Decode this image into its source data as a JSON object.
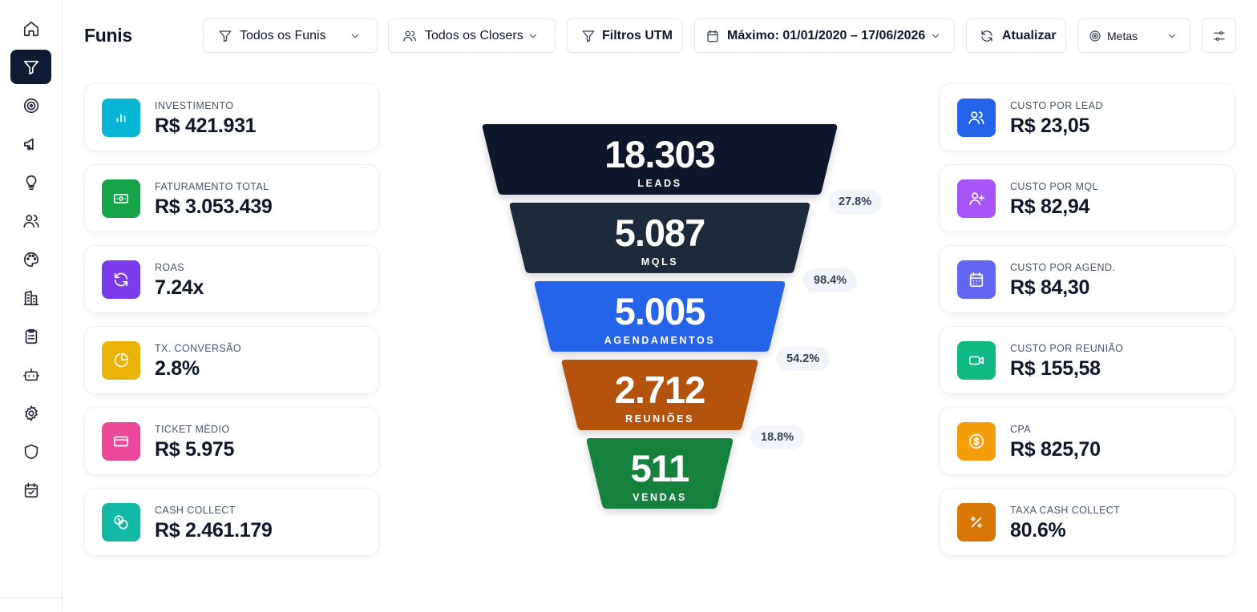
{
  "page_title": "Funis",
  "header": {
    "funnels_select": "Todos os Funis",
    "closers_select": "Todos os Closers",
    "utm_filter": "Filtros UTM",
    "date_range": "Máximo: 01/01/2020 – 17/06/2026",
    "refresh": "Atualizar",
    "goals_select": "Metas"
  },
  "left_cards": [
    {
      "label": "INVESTIMENTO",
      "value": "R$ 421.931",
      "color": "#06b6d4",
      "icon": "bar-chart-icon"
    },
    {
      "label": "FATURAMENTO TOTAL",
      "value": "R$ 3.053.439",
      "color": "#16a34a",
      "icon": "banknote-icon"
    },
    {
      "label": "ROAS",
      "value": "7.24x",
      "color": "#7c3aed",
      "icon": "refresh-icon"
    },
    {
      "label": "TX. CONVERSÃO",
      "value": "2.8%",
      "color": "#eab308",
      "icon": "pie-chart-icon"
    },
    {
      "label": "TICKET MÉDIO",
      "value": "R$ 5.975",
      "color": "#ec4899",
      "icon": "credit-card-icon"
    },
    {
      "label": "CASH COLLECT",
      "value": "R$ 2.461.179",
      "color": "#14b8a6",
      "icon": "coins-icon"
    }
  ],
  "right_cards": [
    {
      "label": "CUSTO POR LEAD",
      "value": "R$ 23,05",
      "color": "#2563eb",
      "icon": "users-icon"
    },
    {
      "label": "CUSTO POR MQL",
      "value": "R$ 82,94",
      "color": "#a855f7",
      "icon": "user-plus-icon"
    },
    {
      "label": "CUSTO POR AGEND.",
      "value": "R$ 84,30",
      "color": "#6366f1",
      "icon": "calendar-icon"
    },
    {
      "label": "CUSTO POR REUNIÃO",
      "value": "R$ 155,58",
      "color": "#10b981",
      "icon": "video-icon"
    },
    {
      "label": "CPA",
      "value": "R$ 825,70",
      "color": "#f59e0b",
      "icon": "dollar-circle-icon"
    },
    {
      "label": "TAXA CASH COLLECT",
      "value": "80.6%",
      "color": "#d97706",
      "icon": "percent-icon"
    }
  ],
  "funnel": {
    "stages": [
      {
        "value": "18.303",
        "label": "LEADS",
        "color": "#0f172a"
      },
      {
        "value": "5.087",
        "label": "MQLS",
        "color": "#1e293b"
      },
      {
        "value": "5.005",
        "label": "AGENDAMENTOS",
        "color": "#2563eb"
      },
      {
        "value": "2.712",
        "label": "REUNIÕES",
        "color": "#b45309"
      },
      {
        "value": "511",
        "label": "VENDAS",
        "color": "#15803d"
      }
    ],
    "conversions": [
      "27.8%",
      "98.4%",
      "54.2%",
      "18.8%"
    ]
  }
}
